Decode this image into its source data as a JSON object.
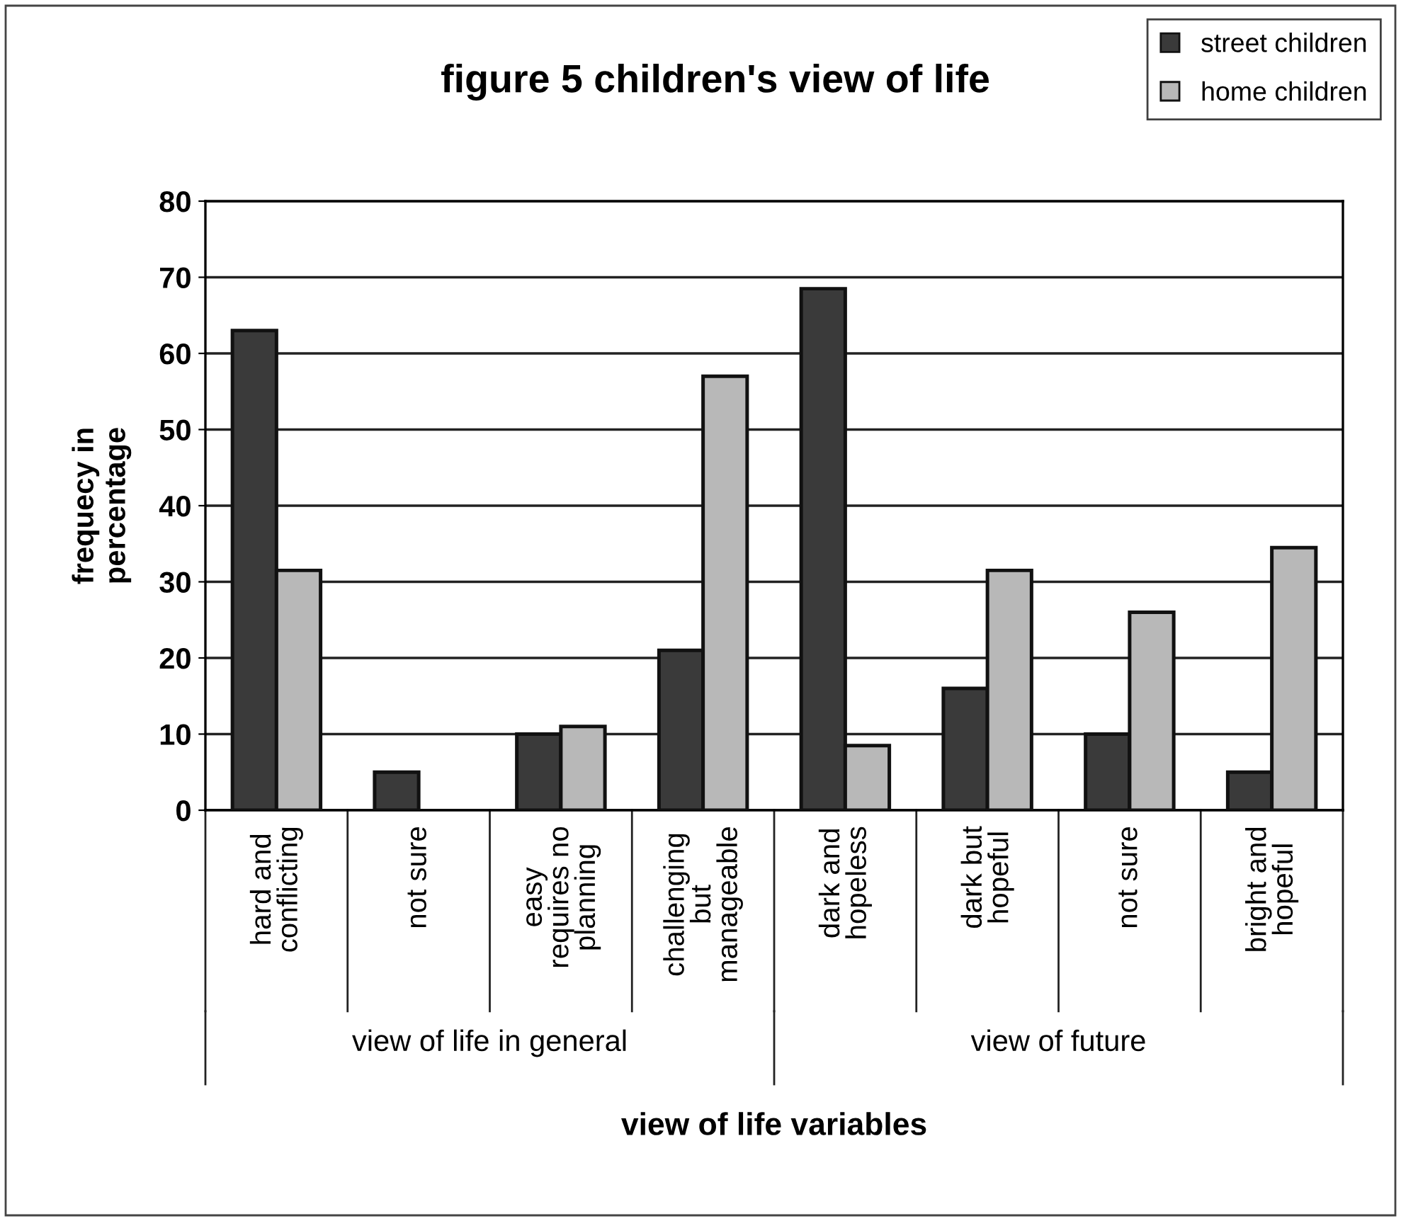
{
  "chart_data": {
    "type": "bar",
    "title": "figure 5 children's view of life",
    "xlabel": "view of life variables",
    "ylabel": "frequecy in\npercentage",
    "categories": [
      "hard and\nconflicting",
      "not sure",
      "easy\nrequires no\nplanning",
      "challenging\nbut\nmanageable",
      "dark and\nhopeless",
      "dark but\nhopeful",
      "not sure",
      "bright and\nhopeful"
    ],
    "series": [
      {
        "name": "street children",
        "color": "#3a3a3a",
        "values": [
          63,
          5,
          10,
          21,
          68.5,
          16,
          10,
          5
        ]
      },
      {
        "name": "home children",
        "color": "#b8b8b8",
        "values": [
          31.5,
          null,
          11,
          57,
          8.5,
          31.5,
          26,
          34.5
        ]
      }
    ],
    "annotations": [
      "view of life in general",
      "view of future"
    ],
    "ylim": [
      0,
      80
    ],
    "yticks": [
      0,
      10,
      20,
      30,
      40,
      50,
      60,
      70,
      80
    ],
    "grid": "y",
    "legend": "top right"
  }
}
